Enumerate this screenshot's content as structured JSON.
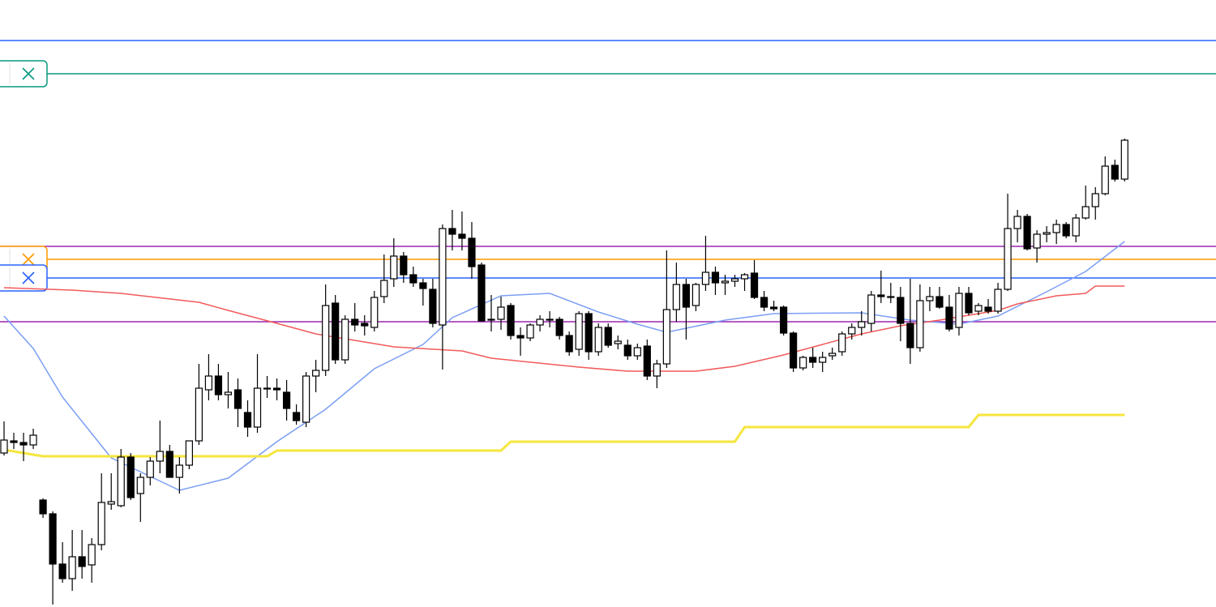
{
  "chart_data": {
    "type": "candlestick",
    "ylim": [
      0,
      749
    ],
    "up_color": "#ffffff",
    "down_color": "#000000",
    "wick_color": "#000000",
    "ohlc": [
      [
        190,
        229,
        187,
        206
      ],
      [
        205,
        215,
        195,
        203
      ],
      [
        203,
        215,
        180,
        200
      ],
      [
        200,
        220,
        195,
        212
      ],
      [
        132,
        134,
        110,
        115
      ],
      [
        115,
        118,
        3,
        53
      ],
      [
        53,
        80,
        30,
        35
      ],
      [
        35,
        95,
        20,
        62
      ],
      [
        62,
        95,
        35,
        50
      ],
      [
        52,
        85,
        30,
        77
      ],
      [
        77,
        165,
        70,
        129
      ],
      [
        127,
        165,
        120,
        130
      ],
      [
        125,
        195,
        123,
        185
      ],
      [
        185,
        190,
        132,
        135
      ],
      [
        140,
        165,
        105,
        160
      ],
      [
        160,
        185,
        150,
        180
      ],
      [
        180,
        230,
        165,
        192
      ],
      [
        192,
        200,
        160,
        160
      ],
      [
        160,
        185,
        140,
        175
      ],
      [
        175,
        205,
        170,
        205
      ],
      [
        205,
        300,
        200,
        270
      ],
      [
        268,
        312,
        255,
        285
      ],
      [
        285,
        300,
        255,
        262
      ],
      [
        262,
        290,
        245,
        265
      ],
      [
        268,
        282,
        222,
        245
      ],
      [
        240,
        255,
        210,
        222
      ],
      [
        222,
        312,
        215,
        270
      ],
      [
        270,
        285,
        258,
        270
      ],
      [
        270,
        282,
        255,
        268
      ],
      [
        265,
        280,
        230,
        245
      ],
      [
        240,
        250,
        225,
        230
      ],
      [
        228,
        290,
        222,
        285
      ],
      [
        285,
        305,
        265,
        292
      ],
      [
        292,
        398,
        285,
        372
      ],
      [
        375,
        385,
        300,
        305
      ],
      [
        305,
        360,
        300,
        355
      ],
      [
        355,
        375,
        340,
        348
      ],
      [
        350,
        360,
        335,
        347
      ],
      [
        345,
        390,
        340,
        382
      ],
      [
        383,
        435,
        375,
        403
      ],
      [
        405,
        455,
        395,
        433
      ],
      [
        433,
        438,
        400,
        410
      ],
      [
        410,
        420,
        395,
        400
      ],
      [
        400,
        405,
        372,
        393
      ],
      [
        392,
        405,
        345,
        350
      ],
      [
        348,
        472,
        293,
        467
      ],
      [
        467,
        490,
        440,
        460
      ],
      [
        460,
        488,
        440,
        455
      ],
      [
        455,
        475,
        405,
        420
      ],
      [
        422,
        425,
        352,
        353
      ],
      [
        355,
        385,
        340,
        355
      ],
      [
        355,
        383,
        342,
        370
      ],
      [
        372,
        375,
        330,
        335
      ],
      [
        335,
        345,
        310,
        332
      ],
      [
        332,
        350,
        328,
        348
      ],
      [
        348,
        360,
        340,
        355
      ],
      [
        355,
        365,
        345,
        355
      ],
      [
        355,
        358,
        330,
        335
      ],
      [
        335,
        340,
        310,
        315
      ],
      [
        318,
        365,
        310,
        362
      ],
      [
        362,
        365,
        305,
        315
      ],
      [
        315,
        350,
        310,
        345
      ],
      [
        345,
        350,
        320,
        323
      ],
      [
        325,
        335,
        318,
        328
      ],
      [
        323,
        330,
        305,
        310
      ],
      [
        310,
        325,
        305,
        320
      ],
      [
        322,
        330,
        280,
        285
      ],
      [
        285,
        305,
        270,
        300
      ],
      [
        300,
        440,
        295,
        367
      ],
      [
        367,
        425,
        352,
        398
      ],
      [
        398,
        405,
        330,
        370
      ],
      [
        372,
        400,
        365,
        398
      ],
      [
        398,
        458,
        390,
        413
      ],
      [
        413,
        420,
        385,
        400
      ],
      [
        400,
        410,
        385,
        402
      ],
      [
        402,
        410,
        395,
        405
      ],
      [
        405,
        412,
        390,
        410
      ],
      [
        412,
        428,
        380,
        382
      ],
      [
        382,
        390,
        365,
        370
      ],
      [
        370,
        378,
        365,
        368
      ],
      [
        370,
        372,
        335,
        338
      ],
      [
        338,
        340,
        290,
        295
      ],
      [
        295,
        310,
        292,
        308
      ],
      [
        308,
        320,
        295,
        302
      ],
      [
        302,
        315,
        290,
        308
      ],
      [
        310,
        320,
        305,
        313
      ],
      [
        315,
        340,
        310,
        337
      ],
      [
        337,
        350,
        330,
        345
      ],
      [
        345,
        365,
        335,
        352
      ],
      [
        350,
        390,
        340,
        385
      ],
      [
        385,
        415,
        375,
        383
      ],
      [
        383,
        400,
        375,
        382
      ],
      [
        382,
        395,
        328,
        350
      ],
      [
        350,
        405,
        300,
        320
      ],
      [
        320,
        398,
        315,
        378
      ],
      [
        378,
        395,
        365,
        383
      ],
      [
        383,
        395,
        368,
        370
      ],
      [
        370,
        385,
        340,
        343
      ],
      [
        345,
        395,
        335,
        387
      ],
      [
        387,
        395,
        360,
        363
      ],
      [
        365,
        375,
        360,
        372
      ],
      [
        370,
        380,
        362,
        365
      ],
      [
        365,
        400,
        362,
        392
      ],
      [
        392,
        510,
        390,
        467
      ],
      [
        467,
        490,
        450,
        482
      ],
      [
        482,
        485,
        440,
        442
      ],
      [
        443,
        465,
        425,
        460
      ],
      [
        460,
        470,
        450,
        462
      ],
      [
        462,
        478,
        448,
        472
      ],
      [
        472,
        475,
        455,
        458
      ],
      [
        458,
        485,
        450,
        480
      ],
      [
        480,
        520,
        478,
        494
      ],
      [
        494,
        518,
        478,
        510
      ],
      [
        510,
        556,
        508,
        544
      ],
      [
        545,
        552,
        525,
        528
      ],
      [
        528,
        578,
        525,
        576
      ]
    ],
    "lines": [
      {
        "color": "#7b9ef5",
        "x": [
          0,
          3,
          6,
          11,
          18,
          23,
          28,
          33,
          38,
          43,
          46,
          51,
          56,
          61,
          65,
          68,
          74,
          79,
          88,
          93,
          98,
          102,
          107,
          111,
          115
        ],
        "values": [
          359,
          319,
          259,
          184,
          144,
          159,
          204,
          244,
          294,
          324,
          357,
          384,
          387,
          364,
          349,
          339,
          354,
          362,
          363,
          354,
          349,
          359,
          389,
          414,
          451
        ]
      },
      {
        "color": "#f25a5a",
        "x": [
          0,
          7,
          12,
          20,
          23,
          28,
          32,
          36,
          40,
          47,
          50,
          59,
          64,
          71,
          75,
          80,
          84,
          88,
          92,
          96,
          102,
          104,
          108,
          111,
          112,
          115
        ],
        "values": [
          394,
          391,
          387,
          376,
          366,
          350,
          337,
          329,
          321,
          316,
          307,
          296,
          291,
          291,
          297,
          311,
          324,
          337,
          347,
          354,
          366,
          374,
          384,
          387,
          396,
          396
        ]
      },
      {
        "color": "#f5e63c",
        "x": [
          0,
          4,
          27,
          28,
          51,
          52,
          75,
          76,
          99,
          100,
          115
        ],
        "values": [
          194,
          186,
          186,
          193,
          193,
          204,
          204,
          222,
          222,
          237,
          237
        ]
      }
    ],
    "levels": [
      {
        "value": 699,
        "color": "#2962ff",
        "button": false
      },
      {
        "value": 658,
        "color": "#089981",
        "button": true
      },
      {
        "value": 445,
        "color": "#9c27b0",
        "button": false
      },
      {
        "value": 429,
        "color": "#ff9800",
        "button": true
      },
      {
        "value": 406,
        "color": "#2962ff",
        "button": true
      },
      {
        "value": 352,
        "color": "#9c27b0",
        "button": false
      }
    ]
  }
}
